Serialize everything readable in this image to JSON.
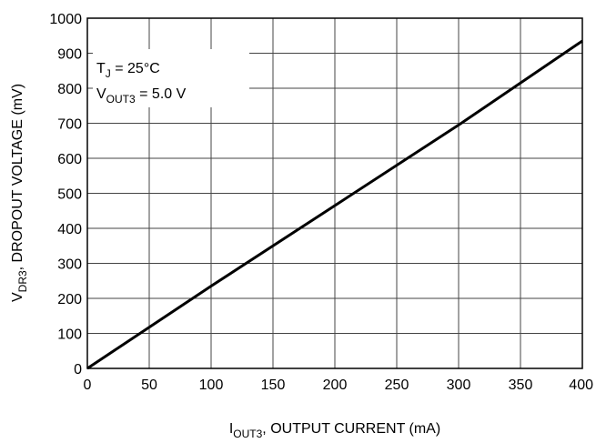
{
  "chart_data": {
    "type": "line",
    "x_label": {
      "text": "I",
      "sub": "OUT3",
      "rest": ", OUTPUT CURRENT (mA)"
    },
    "y_label": {
      "text": "V",
      "sub": "DR3",
      "rest": ", DROPOUT VOLTAGE (mV)"
    },
    "annotations": [
      {
        "text": "T",
        "sub": "J",
        "rest": " = 25°C"
      },
      {
        "text": "V",
        "sub": "OUT3",
        "rest": " = 5.0 V"
      }
    ],
    "x": [
      0,
      100,
      200,
      300,
      400
    ],
    "series": [
      {
        "color": "#000000",
        "values": [
          0,
          235,
          465,
          695,
          935
        ]
      }
    ],
    "xlim": [
      0,
      400
    ],
    "xticks": [
      0,
      50,
      100,
      150,
      200,
      250,
      300,
      350,
      400
    ],
    "ylim": [
      0,
      1000
    ],
    "yticks": [
      0,
      100,
      200,
      300,
      400,
      500,
      600,
      700,
      800,
      900,
      1000
    ],
    "grid": true
  }
}
